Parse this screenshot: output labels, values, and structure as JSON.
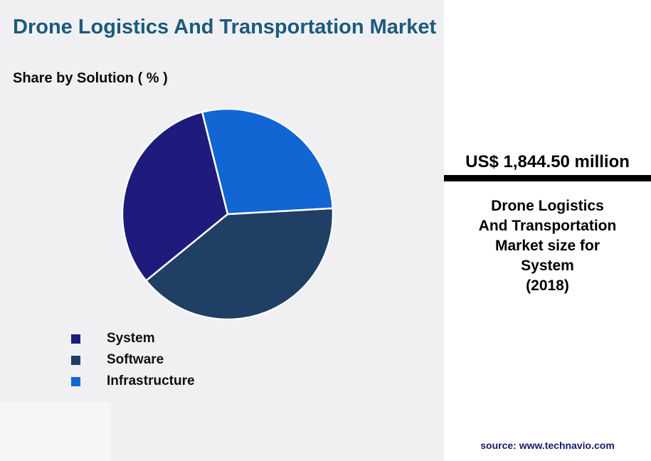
{
  "header": {
    "title": "Drone Logistics And Transportation Market",
    "subtitle": "Share by Solution ( % )"
  },
  "chart_data": {
    "type": "pie",
    "title": "Share by Solution ( % )",
    "labels": [
      "System",
      "Software",
      "Infrastructure"
    ],
    "values": [
      32,
      40,
      28
    ],
    "colors": [
      "#1e1b7c",
      "#1f4064",
      "#1166d4"
    ],
    "start_angle_deg": 346,
    "direction": "counterclockwise",
    "legend_position": "bottom-left",
    "data_labels_shown": false
  },
  "panel": {
    "value": "US$ 1,844.50 million",
    "description_lines": [
      "Drone Logistics",
      "And Transportation",
      "Market size for",
      "System",
      "(2018)"
    ],
    "source": "source: www.technavio.com"
  },
  "colors": {
    "title": "#1b5a7e",
    "page_bg": "#f0f0f2",
    "panel_bg": "#ffffff",
    "divider": "#000000",
    "source_text": "#181a6d"
  }
}
